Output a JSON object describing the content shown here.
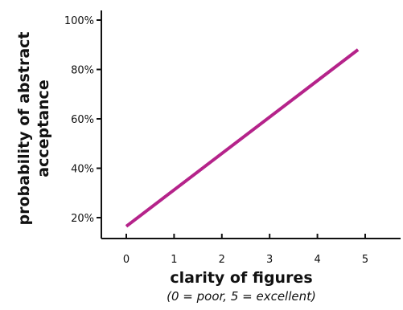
{
  "chart_data": {
    "type": "line",
    "xlabel": "clarity of figures",
    "xlabel_note": "(0 = poor, 5 = excellent)",
    "ylabel_lines": [
      "probability of abstract",
      "acceptance"
    ],
    "x_ticks": [
      0,
      1,
      2,
      3,
      4,
      5
    ],
    "x_tick_labels": [
      "0",
      "1",
      "2",
      "3",
      "4",
      "5"
    ],
    "y_ticks": [
      20,
      40,
      60,
      80,
      100
    ],
    "y_tick_labels": [
      "20%",
      "40%",
      "60%",
      "80%",
      "100%"
    ],
    "xlim": [
      -0.5,
      5.7
    ],
    "ylim": [
      11,
      103
    ],
    "grid": false,
    "series": [
      {
        "x": [
          0,
          4.85
        ],
        "y": [
          16.5,
          88
        ],
        "color": "#b5238a"
      }
    ]
  }
}
